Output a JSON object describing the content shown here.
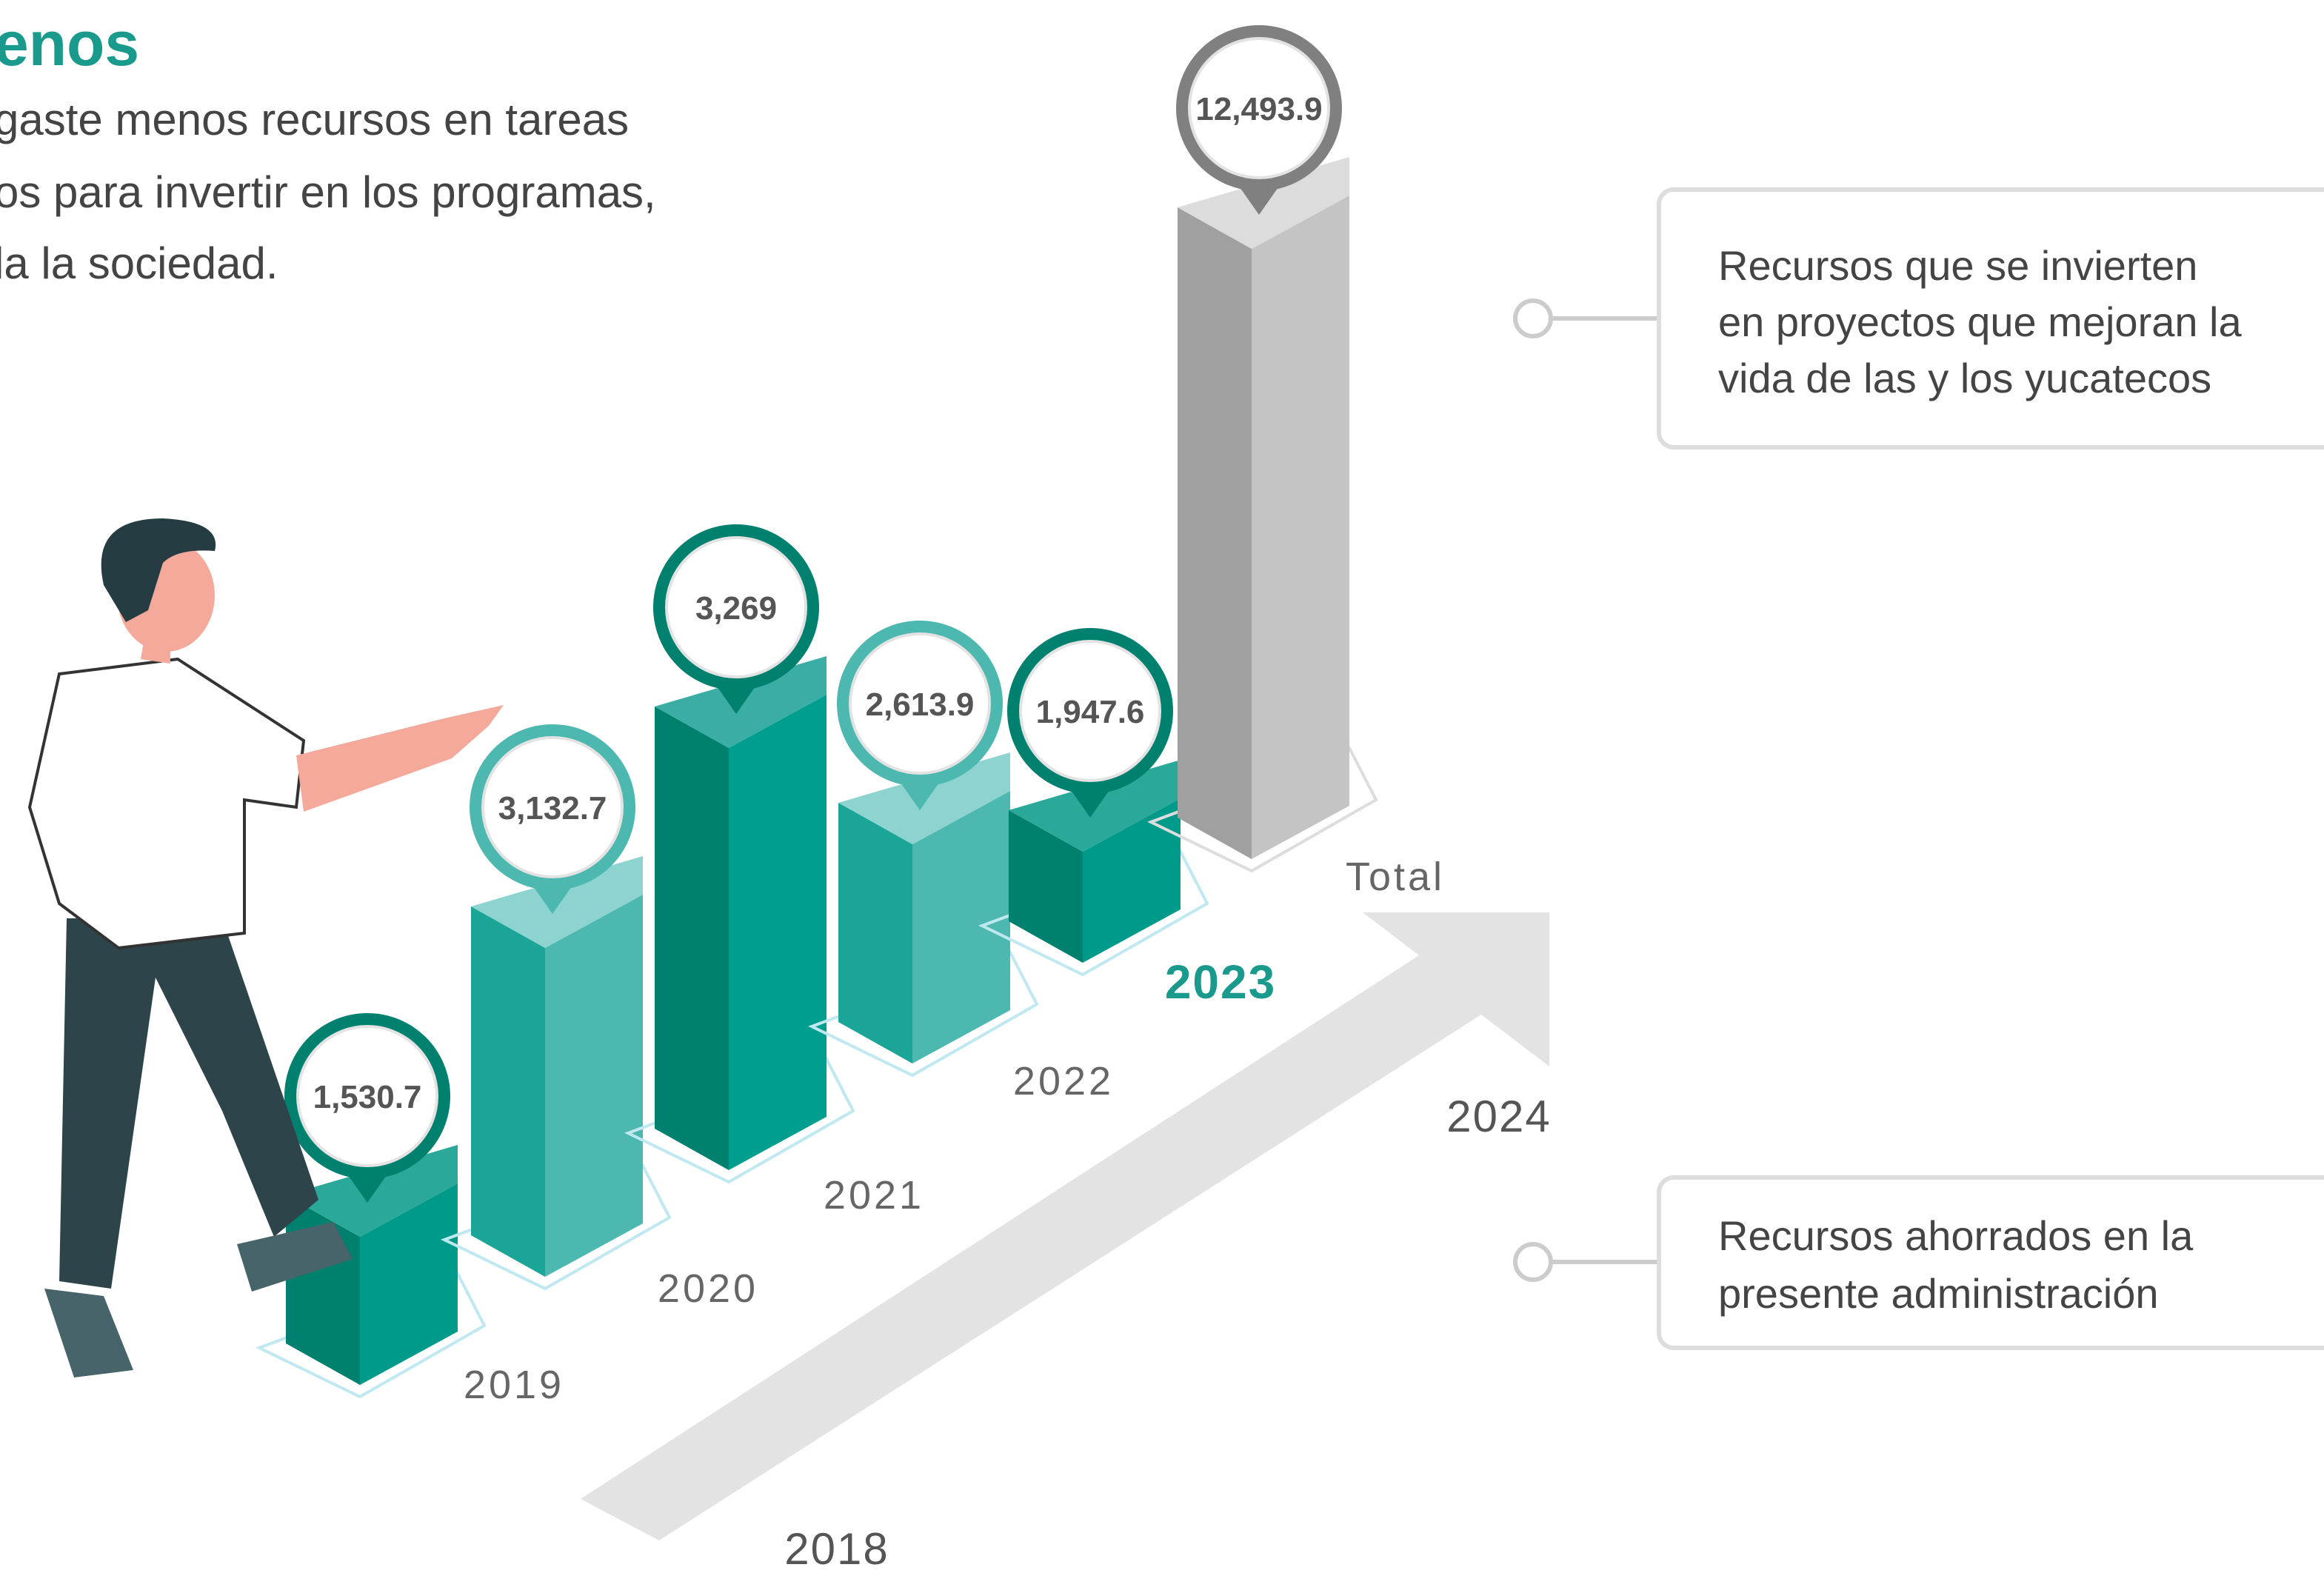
{
  "header": {
    "title": "enos",
    "lines": [
      "gaste menos recursos en tareas",
      "os para invertir en los programas,",
      "la la sociedad."
    ]
  },
  "bars": [
    {
      "year": "2019",
      "label": "1,530.7"
    },
    {
      "year": "2020",
      "label": "3,132.7"
    },
    {
      "year": "2021",
      "label": "3,269"
    },
    {
      "year": "2022",
      "label": "2,613.9"
    },
    {
      "year": "2023",
      "label": "1,947.6"
    },
    {
      "year": "Total",
      "label": "12,493.9"
    }
  ],
  "timeline": {
    "start": "2018",
    "end": "2024"
  },
  "notes": [
    {
      "lines": [
        "Recursos que se invierten",
        "en proyectos que mejoran la",
        "vida de las y los yucatecos"
      ]
    },
    {
      "lines": [
        "Recursos ahorrados en la",
        "presente administración"
      ]
    }
  ]
}
